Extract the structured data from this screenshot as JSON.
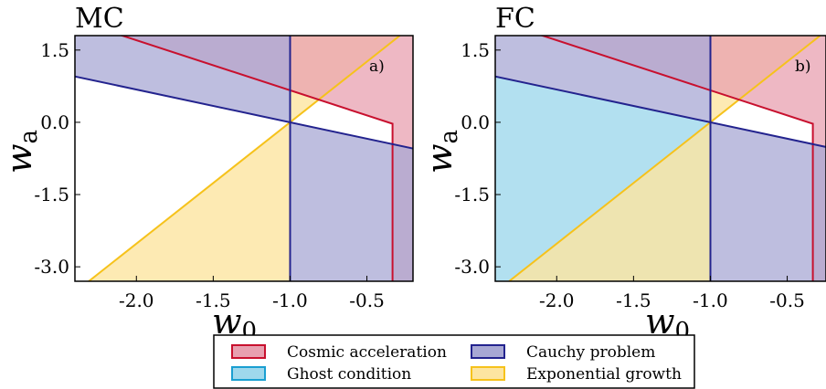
{
  "colors": {
    "cosmic": "#e8a0b0",
    "cosmic_edge": "#c8102e",
    "ghost": "#9fd8ec",
    "ghost_edge": "#1a9fd1",
    "cauchy": "#a8a8d4",
    "cauchy_edge": "#23238e",
    "exponential": "#fde5a0",
    "exponential_edge": "#f6c21b"
  },
  "legend": [
    {
      "key": "cosmic",
      "label": "Cosmic acceleration"
    },
    {
      "key": "cauchy",
      "label": "Cauchy problem"
    },
    {
      "key": "ghost",
      "label": "Ghost condition"
    },
    {
      "key": "exponential",
      "label": "Exponential growth"
    }
  ],
  "chart_data": [
    {
      "type": "area",
      "title": "MC",
      "corner_label": "a)",
      "xlabel": "w",
      "xlabel_sub": "0",
      "ylabel": "w",
      "ylabel_sub": "a",
      "xlim": [
        -2.4,
        -0.2
      ],
      "ylim": [
        -3.3,
        1.8
      ],
      "xticks": [
        "-2.0",
        "-1.5",
        "-1.0",
        "-0.5"
      ],
      "xtick_values": [
        -2.0,
        -1.5,
        -1.0,
        -0.5
      ],
      "yticks": [
        "1.5",
        "0.0",
        "-1.5",
        "-3.0"
      ],
      "ytick_values": [
        1.5,
        0.0,
        -1.5,
        -3.0
      ],
      "show_ghost": false
    },
    {
      "type": "area",
      "title": "FC",
      "corner_label": "b)",
      "xlabel": "w",
      "xlabel_sub": "0",
      "ylabel": "w",
      "ylabel_sub": "a",
      "xlim": [
        -2.4,
        -0.2
      ],
      "ylim": [
        -3.3,
        1.8
      ],
      "xticks": [
        "-2.0",
        "-1.5",
        "-1.0",
        "-0.5"
      ],
      "xtick_values": [
        -2.0,
        -1.5,
        -1.0,
        -0.5
      ],
      "yticks": [
        "1.5",
        "0.0",
        "-1.5",
        "-3.0"
      ],
      "ytick_values": [
        1.5,
        0.0,
        -1.5,
        -3.0
      ],
      "show_ghost": true
    }
  ]
}
